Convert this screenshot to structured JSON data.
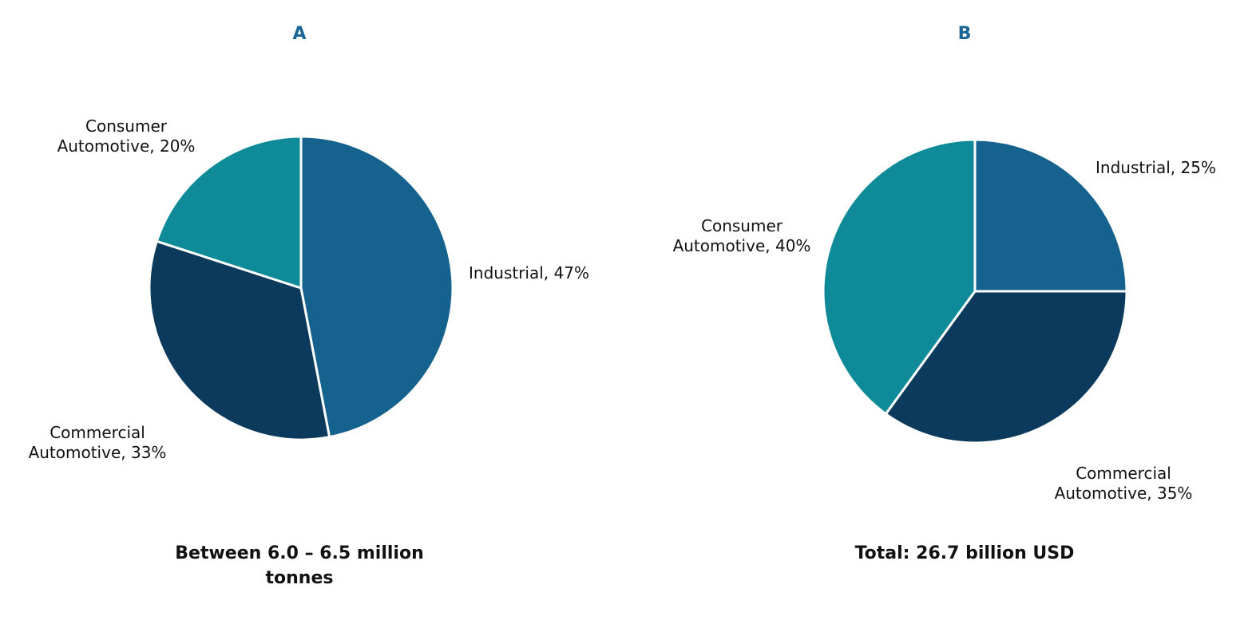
{
  "chart_data": [
    {
      "type": "pie",
      "title": "A",
      "caption": "Between 6.0 – 6.5 million tonnes",
      "slices": [
        {
          "name": "Industrial",
          "value": 47,
          "label": [
            "Industrial, 47%"
          ],
          "color": "#16628f"
        },
        {
          "name": "Commercial Automotive",
          "value": 33,
          "label": [
            "Commercial",
            "Automotive, 33%"
          ],
          "color": "#0b3a5c"
        },
        {
          "name": "Consumer Automotive",
          "value": 20,
          "label": [
            "Consumer",
            "Automotive, 20%"
          ],
          "color": "#0f8a98"
        }
      ]
    },
    {
      "type": "pie",
      "title": "B",
      "caption": "Total: 26.7 billion USD",
      "slices": [
        {
          "name": "Industrial",
          "value": 25,
          "label": [
            "Industrial, 25%"
          ],
          "color": "#16628f"
        },
        {
          "name": "Commercial Automotive",
          "value": 35,
          "label": [
            "Commercial",
            "Automotive, 35%"
          ],
          "color": "#0b3a5c"
        },
        {
          "name": "Consumer Automotive",
          "value": 40,
          "label": [
            "Consumer",
            "Automotive, 40%"
          ],
          "color": "#0f8a98"
        }
      ]
    }
  ]
}
